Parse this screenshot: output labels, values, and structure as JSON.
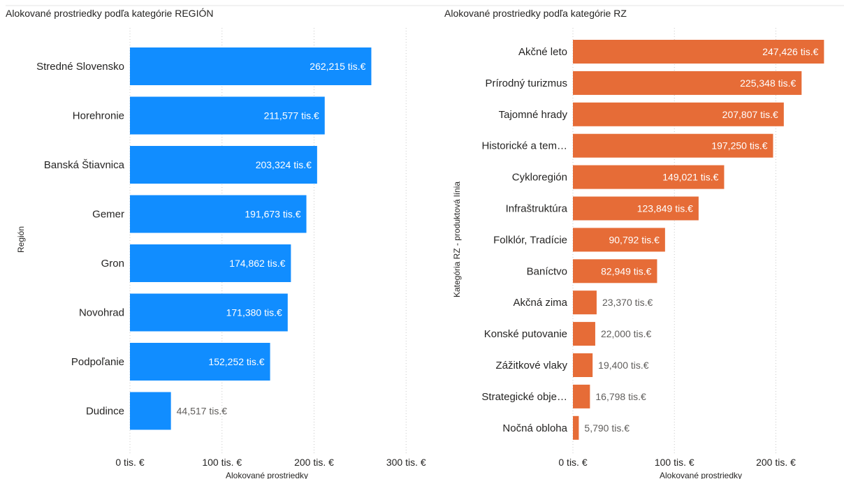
{
  "chart_data": [
    {
      "type": "bar",
      "orientation": "horizontal",
      "title": "Alokované prostriedky podľa kategórie REGIÓN",
      "xlabel": "Alokované prostriedky",
      "ylabel": "Región",
      "categories": [
        "Stredné Slovensko",
        "Horehronie",
        "Banská Štiavnica",
        "Gemer",
        "Gron",
        "Novohrad",
        "Podpoľanie",
        "Dudince"
      ],
      "values": [
        262.215,
        211.577,
        203.324,
        191.673,
        174.862,
        171.38,
        152.252,
        44.517
      ],
      "value_labels": [
        "262,215 tis.€",
        "211,577 tis.€",
        "203,324 tis.€",
        "191,673 tis.€",
        "174,862 tis.€",
        "171,380 tis.€",
        "152,252 tis.€",
        "44,517 tis.€"
      ],
      "xlim": [
        0,
        300
      ],
      "xticks": [
        0,
        100,
        200,
        300
      ],
      "xtick_labels": [
        "0 tis. €",
        "100 tis. €",
        "200 tis. €",
        "300 tis. €"
      ],
      "color": "#118DFF",
      "grid": true
    },
    {
      "type": "bar",
      "orientation": "horizontal",
      "title": "Alokované prostriedky podľa kategórie RZ",
      "xlabel": "Alokované prostriedky",
      "ylabel": "Kategória RZ - produktová línia",
      "categories": [
        "Akčné leto",
        "Prírodný turizmus",
        "Tajomné hrady",
        "Historické a tem…",
        "Cykloregión",
        "Infraštruktúra",
        "Folklór, Tradície",
        "Baníctvo",
        "Akčná zima",
        "Konské putovanie",
        "Zážitkové vlaky",
        "Strategické obje…",
        "Nočná obloha"
      ],
      "values": [
        247.426,
        225.348,
        207.807,
        197.25,
        149.021,
        123.849,
        90.792,
        82.949,
        23.37,
        22.0,
        19.4,
        16.798,
        5.79
      ],
      "value_labels": [
        "247,426 tis.€",
        "225,348 tis.€",
        "207,807 tis.€",
        "197,250 tis.€",
        "149,021 tis.€",
        "123,849 tis.€",
        "90,792 tis.€",
        "82,949 tis.€",
        "23,370 tis.€",
        "22,000 tis.€",
        "19,400 tis.€",
        "16,798 tis.€",
        "5,790 tis.€"
      ],
      "xlim": [
        0,
        250
      ],
      "xticks": [
        0,
        100,
        200
      ],
      "xtick_labels": [
        "0 tis. €",
        "100 tis. €",
        "200 tis. €"
      ],
      "color": "#E66C37",
      "grid": true
    }
  ]
}
